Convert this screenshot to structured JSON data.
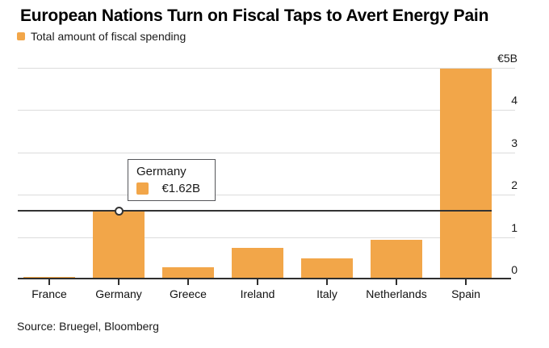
{
  "header": {
    "title": "European Nations Turn on Fiscal Taps to Avert Energy Pain",
    "legend_label": "Total amount of fiscal spending"
  },
  "tooltip": {
    "category": "Germany",
    "value_label": "€1.62B"
  },
  "footer": {
    "source": "Source: Bruegel, Bloomberg"
  },
  "colors": {
    "bar": "#F2A649",
    "axis": "#2e2e2e",
    "gridline": "#dcdcdc",
    "crosshair": "#333333",
    "marker_ring": "#333333",
    "tooltip_border": "#55565a"
  },
  "chart_data": {
    "type": "bar",
    "title": "European Nations Turn on Fiscal Taps to Avert Energy Pain",
    "series_name": "Total amount of fiscal spending",
    "categories": [
      "France",
      "Germany",
      "Greece",
      "Ireland",
      "Italy",
      "Netherlands",
      "Spain"
    ],
    "values": [
      0.06,
      1.62,
      0.29,
      0.75,
      0.5,
      0.94,
      4.98
    ],
    "unit": "€B",
    "xlabel": "",
    "ylabel": "€B",
    "ylim": [
      0,
      5
    ],
    "yticks": [
      0,
      1,
      2,
      3,
      4,
      5
    ],
    "ytick_labels": [
      "0",
      "1",
      "2",
      "3",
      "4",
      "€5B"
    ],
    "grid": true,
    "legend_position": "top-left",
    "highlight": {
      "category": "Germany",
      "value": 1.62,
      "value_label": "€1.62B"
    }
  }
}
